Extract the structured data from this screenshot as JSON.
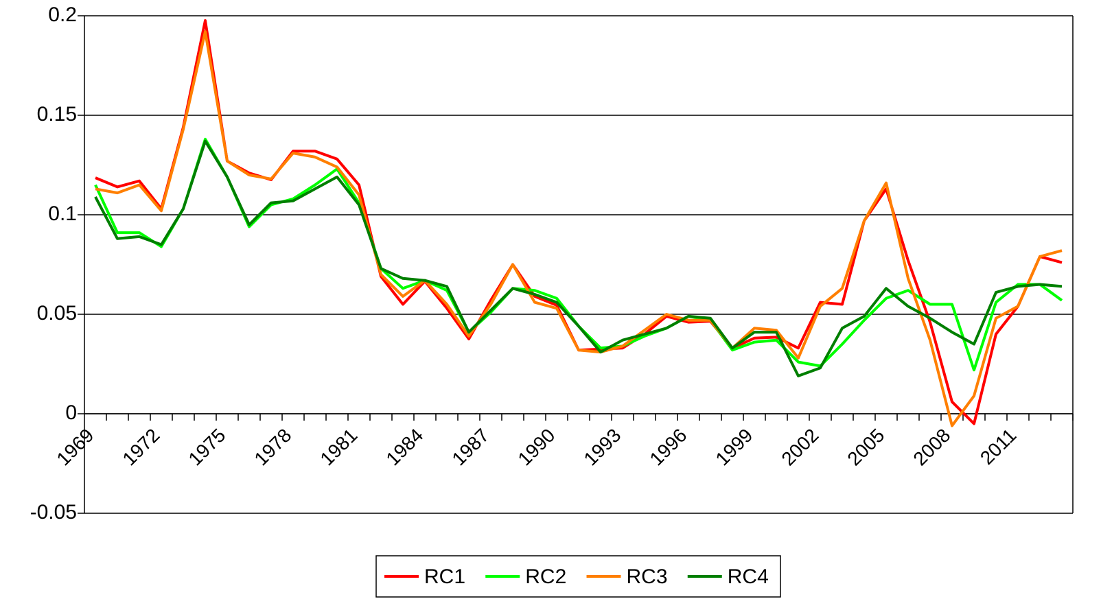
{
  "chart_data": {
    "type": "line",
    "categories": [
      "1969",
      null,
      null,
      "1972",
      null,
      null,
      "1975",
      null,
      null,
      "1978",
      null,
      null,
      "1981",
      null,
      null,
      "1984",
      null,
      null,
      "1987",
      null,
      null,
      "1990",
      null,
      null,
      "1993",
      null,
      null,
      "1996",
      null,
      null,
      "1999",
      null,
      null,
      "2002",
      null,
      null,
      "2005",
      null,
      null,
      "2008",
      null,
      null,
      "2011",
      null,
      null
    ],
    "series": [
      {
        "name": "RC1",
        "color": "#ff0000",
        "values": [
          0.1186,
          0.114,
          0.117,
          0.103,
          0.144,
          0.1976,
          0.127,
          0.121,
          0.1176,
          0.132,
          0.132,
          0.128,
          0.115,
          0.069,
          0.055,
          0.0666,
          0.053,
          0.0376,
          0.057,
          0.075,
          0.059,
          0.0545,
          0.032,
          0.0325,
          0.033,
          0.04,
          0.049,
          0.046,
          0.0465,
          0.033,
          0.038,
          0.0385,
          0.033,
          0.056,
          0.055,
          0.097,
          0.113,
          0.077,
          0.046,
          0.006,
          -0.005,
          0.04,
          0.054,
          0.079,
          0.076
        ]
      },
      {
        "name": "RC2",
        "color": "#00ff00",
        "values": [
          0.115,
          0.091,
          0.091,
          0.084,
          0.103,
          0.138,
          0.119,
          0.094,
          0.105,
          0.108,
          0.115,
          0.123,
          0.106,
          0.073,
          0.063,
          0.067,
          0.062,
          0.041,
          0.051,
          0.063,
          0.062,
          0.058,
          0.044,
          0.033,
          0.034,
          0.039,
          0.043,
          0.049,
          0.047,
          0.032,
          0.036,
          0.037,
          0.026,
          0.024,
          0.035,
          0.047,
          0.058,
          0.062,
          0.055,
          0.055,
          0.022,
          0.056,
          0.065,
          0.065,
          0.057
        ]
      },
      {
        "name": "RC3",
        "color": "#ff7f00",
        "values": [
          0.113,
          0.111,
          0.115,
          0.102,
          0.143,
          0.192,
          0.127,
          0.12,
          0.118,
          0.131,
          0.129,
          0.124,
          0.11,
          0.07,
          0.059,
          0.067,
          0.055,
          0.039,
          0.055,
          0.075,
          0.056,
          0.053,
          0.032,
          0.031,
          0.034,
          0.042,
          0.05,
          0.047,
          0.047,
          0.033,
          0.043,
          0.042,
          0.028,
          0.054,
          0.063,
          0.097,
          0.116,
          0.068,
          0.037,
          -0.006,
          0.009,
          0.048,
          0.054,
          0.079,
          0.082
        ]
      },
      {
        "name": "RC4",
        "color": "#007f00",
        "values": [
          0.109,
          0.088,
          0.089,
          0.085,
          0.103,
          0.137,
          0.119,
          0.095,
          0.106,
          0.107,
          0.113,
          0.119,
          0.105,
          0.073,
          0.068,
          0.067,
          0.064,
          0.041,
          0.052,
          0.063,
          0.06,
          0.056,
          0.044,
          0.031,
          0.037,
          0.04,
          0.043,
          0.049,
          0.048,
          0.033,
          0.041,
          0.041,
          0.019,
          0.023,
          0.043,
          0.049,
          0.063,
          0.054,
          0.048,
          0.041,
          0.035,
          0.061,
          0.064,
          0.065,
          0.064
        ]
      }
    ],
    "ylim": [
      -0.05,
      0.2
    ],
    "yticks": [
      -0.05,
      0,
      0.05,
      0.1,
      0.15,
      0.2
    ],
    "grid": true,
    "legend": "bottom"
  }
}
